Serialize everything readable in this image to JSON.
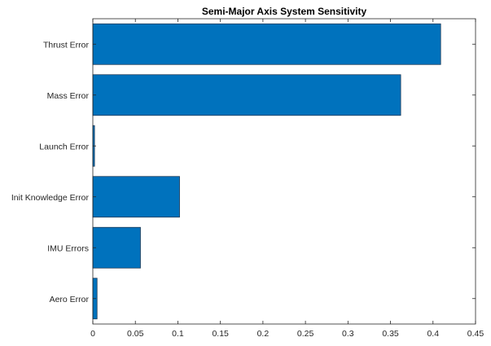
{
  "chart_data": {
    "type": "bar",
    "orientation": "horizontal",
    "title": "Semi-Major Axis System Sensitivity",
    "xlabel": "",
    "ylabel": "",
    "categories": [
      "Thrust Error",
      "Mass Error",
      "Launch Error",
      "Init Knowledge Error",
      "IMU Errors",
      "Aero Error"
    ],
    "values": [
      0.409,
      0.362,
      0.002,
      0.102,
      0.056,
      0.005
    ],
    "xlim": [
      0,
      0.45
    ],
    "xticks": [
      0,
      0.05,
      0.1,
      0.15,
      0.2,
      0.25,
      0.3,
      0.35,
      0.4,
      0.45
    ],
    "xtick_labels": [
      "0",
      "0.05",
      "0.1",
      "0.15",
      "0.2",
      "0.25",
      "0.3",
      "0.35",
      "0.4",
      "0.45"
    ],
    "grid": false,
    "legend": "none",
    "bar_color": "#0072BD",
    "bar_edge_color": "#1f3b57"
  }
}
